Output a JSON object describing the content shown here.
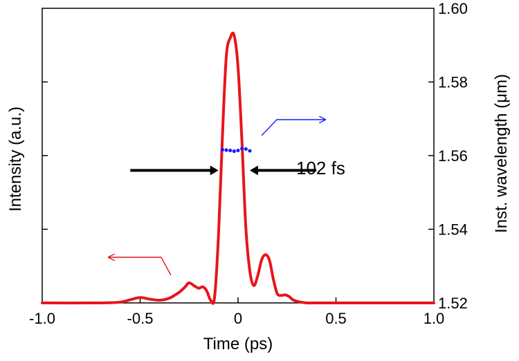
{
  "chart_data": {
    "type": "line",
    "xlabel": "Time (ps)",
    "ylabel_left": "Intensity (a.u.)",
    "ylabel_right": "Inst. wavelength (μm)",
    "xlim": [
      -1.0,
      1.0
    ],
    "y_right_lim": [
      1.52,
      1.6
    ],
    "x_ticks": [
      "-1.0",
      "-0.5",
      "0",
      "0.5",
      "1.0"
    ],
    "y_right_ticks": [
      "1.52",
      "1.54",
      "1.56",
      "1.58",
      "1.60"
    ],
    "grid": false,
    "colors": {
      "intensity": "#e8141b",
      "wavelength": "#1a1aff",
      "annotation": "#000000"
    },
    "series": [
      {
        "axis": "left",
        "style": "solid-line",
        "x": [
          -1.0,
          -0.7,
          -0.6,
          -0.55,
          -0.5,
          -0.45,
          -0.4,
          -0.35,
          -0.3,
          -0.27,
          -0.25,
          -0.22,
          -0.2,
          -0.18,
          -0.16,
          -0.14,
          -0.12,
          -0.1,
          -0.08,
          -0.06,
          -0.04,
          -0.02,
          0.0,
          0.02,
          0.04,
          0.06,
          0.08,
          0.1,
          0.12,
          0.14,
          0.16,
          0.18,
          0.2,
          0.22,
          0.24,
          0.26,
          0.28,
          0.3,
          0.32,
          0.35,
          0.4,
          0.45,
          0.5,
          1.0
        ],
        "y": [
          0.0,
          0.0,
          0.003,
          0.012,
          0.02,
          0.014,
          0.01,
          0.018,
          0.04,
          0.06,
          0.075,
          0.062,
          0.055,
          0.06,
          0.045,
          0.01,
          0.02,
          0.25,
          0.62,
          0.92,
          0.99,
          1.0,
          0.88,
          0.6,
          0.28,
          0.12,
          0.065,
          0.1,
          0.16,
          0.18,
          0.16,
          0.09,
          0.035,
          0.028,
          0.03,
          0.024,
          0.012,
          0.006,
          0.003,
          0.0,
          0.0,
          0.0,
          0.0,
          0.0
        ]
      },
      {
        "axis": "right",
        "style": "dotted",
        "x": [
          -0.08,
          -0.06,
          -0.04,
          -0.02,
          0.0,
          0.02,
          0.04,
          0.06
        ],
        "y": [
          1.5616,
          1.5615,
          1.5614,
          1.5612,
          1.5614,
          1.5619,
          1.5618,
          1.5613
        ]
      }
    ],
    "annotation": {
      "label": "102 fs",
      "left_arrow_x": [
        -0.55,
        -0.1
      ],
      "right_arrow_x": [
        0.4,
        0.06
      ],
      "level": 0.495
    },
    "axis_arrows": [
      {
        "for": "intensity",
        "direction": "left",
        "color": "#e8141b"
      },
      {
        "for": "wavelength",
        "direction": "right",
        "color": "#1a1aff"
      }
    ]
  }
}
